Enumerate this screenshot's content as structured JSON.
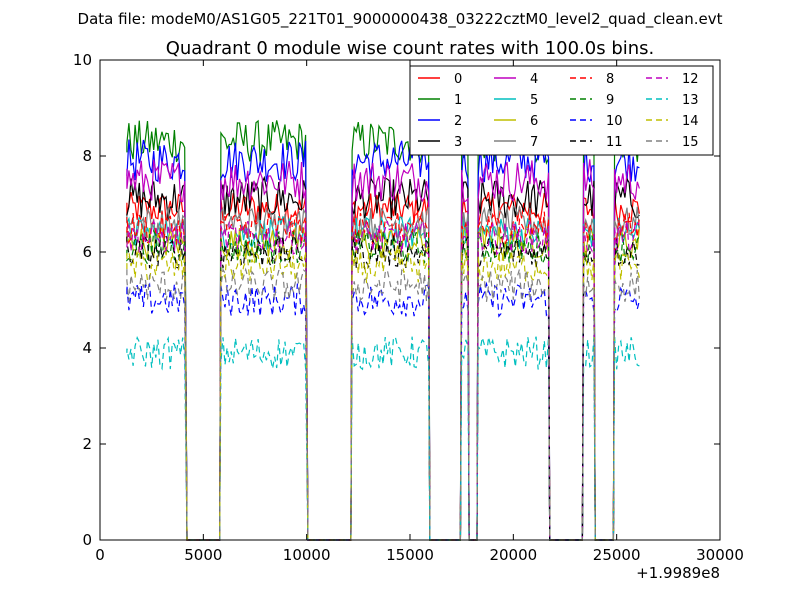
{
  "suptitle": "Data file: modeM0/AS1G05_221T01_9000000438_03222cztM0_level2_quad_clean.evt",
  "chart_data": {
    "type": "line",
    "title": "Quadrant 0 module wise count rates with 100.0s bins.",
    "xlabel": "",
    "ylabel": "",
    "x_offset_label": "+1.9989e8",
    "xlim": [
      0,
      30000
    ],
    "ylim": [
      0,
      10
    ],
    "xticks": [
      0,
      5000,
      10000,
      15000,
      20000,
      25000,
      30000
    ],
    "yticks": [
      0,
      2,
      4,
      6,
      8,
      10
    ],
    "grid": false,
    "legend_position": "top-right",
    "legend_columns": 4,
    "segments": [
      [
        1300,
        4150
      ],
      [
        5850,
        10000
      ],
      [
        12200,
        15900
      ],
      [
        17500,
        17800
      ],
      [
        18300,
        21700
      ],
      [
        23400,
        23900
      ],
      [
        24900,
        26150
      ]
    ],
    "series": [
      {
        "name": "0",
        "color": "#ff0000",
        "dash": "solid",
        "level": 6.9
      },
      {
        "name": "1",
        "color": "#008000",
        "dash": "solid",
        "level": 8.3
      },
      {
        "name": "2",
        "color": "#0000ff",
        "dash": "solid",
        "level": 7.9
      },
      {
        "name": "3",
        "color": "#000000",
        "dash": "solid",
        "level": 7.1
      },
      {
        "name": "4",
        "color": "#bf00bf",
        "dash": "solid",
        "level": 7.5
      },
      {
        "name": "5",
        "color": "#00bfbf",
        "dash": "solid",
        "level": 6.4
      },
      {
        "name": "6",
        "color": "#bfbf00",
        "dash": "solid",
        "level": 6.2
      },
      {
        "name": "7",
        "color": "#808080",
        "dash": "solid",
        "level": 6.6
      },
      {
        "name": "8",
        "color": "#ff0000",
        "dash": "dashed",
        "level": 6.5
      },
      {
        "name": "9",
        "color": "#008000",
        "dash": "dashed",
        "level": 6.1
      },
      {
        "name": "10",
        "color": "#0000ff",
        "dash": "dashed",
        "level": 5.0
      },
      {
        "name": "11",
        "color": "#000000",
        "dash": "dashed",
        "level": 6.0
      },
      {
        "name": "12",
        "color": "#bf00bf",
        "dash": "dashed",
        "level": 6.3
      },
      {
        "name": "13",
        "color": "#00bfbf",
        "dash": "dashed",
        "level": 3.9
      },
      {
        "name": "14",
        "color": "#bfbf00",
        "dash": "dashed",
        "level": 5.7
      },
      {
        "name": "15",
        "color": "#808080",
        "dash": "dashed",
        "level": 5.3
      }
    ]
  }
}
